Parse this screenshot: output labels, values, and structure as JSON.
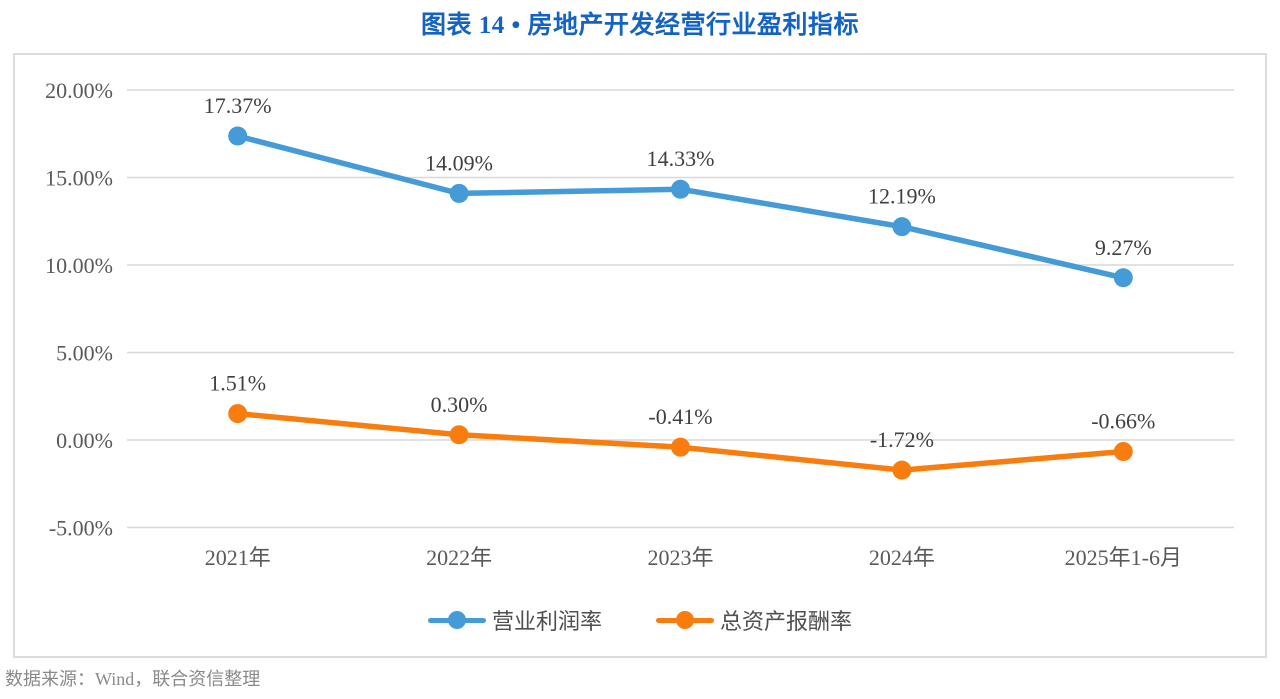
{
  "page": {
    "title": "图表 14 • 房地产开发经营行业盈利指标",
    "source_note": "数据来源：Wind，联合资信整理"
  },
  "colors": {
    "title_text": "#1463C2",
    "panel_border": "#DCDCDC",
    "gridline": "#D9D9D9",
    "axis_tick_text": "#595959",
    "data_label_text": "#3F3F3F",
    "legend_text": "#4F4F4F",
    "source_text": "#8A8A8A",
    "series_blue": "#459AD8",
    "series_orange": "#F87D0E"
  },
  "chart_data": {
    "type": "line",
    "title": "图表 14 • 房地产开发经营行业盈利指标",
    "categories": [
      "2021年",
      "2022年",
      "2023年",
      "2024年",
      "2025年1-6月"
    ],
    "series": [
      {
        "name": "营业利润率",
        "color": "#459AD8",
        "values": [
          17.37,
          14.09,
          14.33,
          12.19,
          9.27
        ],
        "point_labels": [
          "17.37%",
          "14.09%",
          "14.33%",
          "12.19%",
          "9.27%"
        ]
      },
      {
        "name": "总资产报酬率",
        "color": "#F87D0E",
        "values": [
          1.51,
          0.3,
          -0.41,
          -1.72,
          -0.66
        ],
        "point_labels": [
          "1.51%",
          "0.30%",
          "-0.41%",
          "-1.72%",
          "-0.66%"
        ]
      }
    ],
    "y_axis": {
      "min": -5,
      "max": 20,
      "step": 5,
      "tick_labels": [
        "20.00%",
        "15.00%",
        "10.00%",
        "5.00%",
        "0.00%",
        "-5.00%"
      ]
    },
    "x_axis_label": "",
    "y_axis_label": "",
    "grid": true,
    "legend_position": "bottom"
  }
}
